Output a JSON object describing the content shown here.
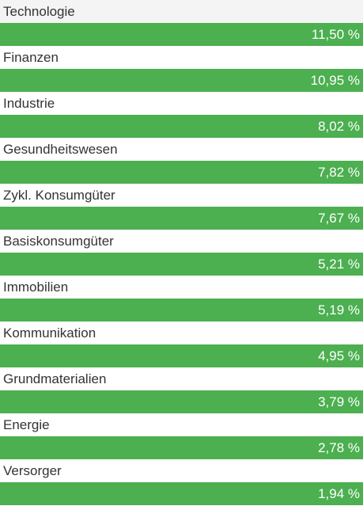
{
  "colors": {
    "bar": "#4caf50",
    "bar_text": "#ffffff",
    "label_text": "#333333",
    "first_row_background": "#f4f4f4"
  },
  "sectors": [
    {
      "label": "Technologie",
      "value_text": "11,50 %",
      "bar_fill_percent": 100
    },
    {
      "label": "Finanzen",
      "value_text": "10,95 %",
      "bar_fill_percent": 100
    },
    {
      "label": "Industrie",
      "value_text": "8,02 %",
      "bar_fill_percent": 100
    },
    {
      "label": "Gesundheitswesen",
      "value_text": "7,82 %",
      "bar_fill_percent": 100
    },
    {
      "label": "Zykl. Konsumgüter",
      "value_text": "7,67 %",
      "bar_fill_percent": 100
    },
    {
      "label": "Basiskonsumgüter",
      "value_text": "5,21 %",
      "bar_fill_percent": 100
    },
    {
      "label": "Immobilien",
      "value_text": "5,19 %",
      "bar_fill_percent": 100
    },
    {
      "label": "Kommunikation",
      "value_text": "4,95 %",
      "bar_fill_percent": 100
    },
    {
      "label": "Grundmaterialien",
      "value_text": "3,79 %",
      "bar_fill_percent": 100
    },
    {
      "label": "Energie",
      "value_text": "2,78 %",
      "bar_fill_percent": 100
    },
    {
      "label": "Versorger",
      "value_text": "1,94 %",
      "bar_fill_percent": 100
    }
  ]
}
